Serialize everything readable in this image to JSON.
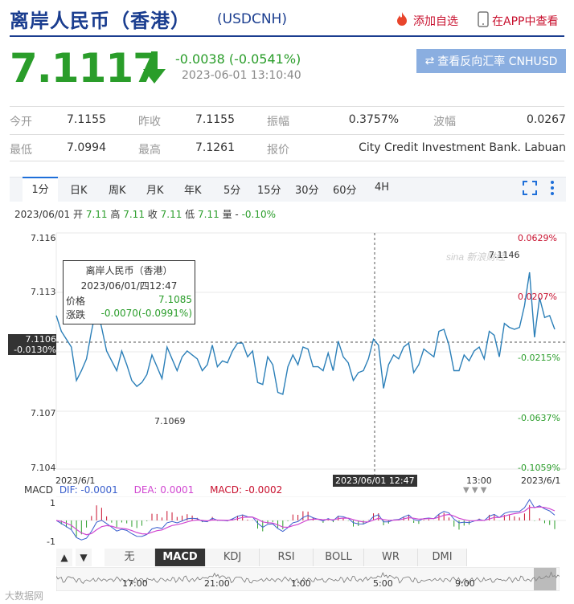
{
  "header": {
    "title": "离岸人民币（香港）",
    "code": "(USDCNH)",
    "add_watch": "添加自选",
    "view_app": "在APP中查看"
  },
  "quote": {
    "price": "7.1117",
    "change": "-0.0038 (-0.0541%)",
    "timestamp": "2023-06-01 13:10:40",
    "reverse_button": "查看反向汇率 CNHUSD",
    "fields": {
      "open_label": "今开",
      "open": "7.1155",
      "prev_label": "昨收",
      "prev": "7.1155",
      "amp_label": "振幅",
      "amp": "0.3757%",
      "wave_label": "波幅",
      "wave": "0.0267",
      "low_label": "最低",
      "low": "7.0994",
      "high_label": "最高",
      "high": "7.1261",
      "quote_label": "报价",
      "quoter": "City Credit Investment Bank. Labuan"
    }
  },
  "tabs": [
    "1分",
    "日K",
    "周K",
    "月K",
    "年K",
    "5分",
    "15分",
    "30分",
    "60分",
    "4H"
  ],
  "info_line": {
    "date": "2023/06/01",
    "open_label": "开",
    "open": "7.11",
    "high_label": "高",
    "high": "7.11",
    "close_label": "收",
    "close": "7.11",
    "low_label": "低",
    "low": "7.11",
    "vol_label": "量",
    "vol": "-",
    "change": "-0.10%"
  },
  "chart": {
    "y_labels": [
      "7.116",
      "7.113",
      "7.107",
      "7.104"
    ],
    "pct_labels": [
      "0.0629%",
      "0.0207%",
      "-0.0215%",
      "-0.0637%",
      "-0.1059%"
    ],
    "crosshair_price": "7.1106",
    "crosshair_pct": "-0.0130%",
    "max_label": "7.1146",
    "min_label": "7.1069",
    "x_start": "2023/6/1",
    "x_mid": "13:00",
    "x_end": "2023/6/1",
    "cursor_time": "2023/06/01 12:47",
    "watermark": "sina 新浪财经",
    "tooltip": {
      "title": "离岸人民币（香港）",
      "datetime": "2023/06/01/四12:47",
      "price_label": "价格",
      "price": "7.1085",
      "change_label": "涨跌",
      "change": "-0.0070(-0.0991%)"
    }
  },
  "chart_data": {
    "type": "line",
    "title": "",
    "ylim": [
      7.104,
      7.116
    ],
    "series": [
      {
        "name": "USDCNH",
        "values": [
          7.1118,
          7.111,
          7.1106,
          7.1102,
          7.1085,
          7.109,
          7.1096,
          7.111,
          7.1122,
          7.1112,
          7.11,
          7.1095,
          7.109,
          7.11,
          7.1093,
          7.1085,
          7.1082,
          7.1084,
          7.1088,
          7.1098,
          7.1092,
          7.1086,
          7.1102,
          7.1096,
          7.109,
          7.1097,
          7.11,
          7.1098,
          7.1096,
          7.109,
          7.1093,
          7.1103,
          7.1092,
          7.1095,
          7.1094,
          7.11,
          7.1104,
          7.1104,
          7.1097,
          7.11,
          7.1084,
          7.1083,
          7.1097,
          7.1093,
          7.1079,
          7.1078,
          7.1092,
          7.1098,
          7.1093,
          7.1102,
          7.1101,
          7.1092,
          7.1092,
          7.109,
          7.1099,
          7.109,
          7.1105,
          7.1097,
          7.1094,
          7.1085,
          7.1089,
          7.109,
          7.1096,
          7.1106,
          7.1103,
          7.1081,
          7.1093,
          7.1098,
          7.1096,
          7.1102,
          7.1104,
          7.1089,
          7.1093,
          7.1101,
          7.1099,
          7.1097,
          7.111,
          7.1111,
          7.1103,
          7.109,
          7.109,
          7.1098,
          7.1095,
          7.11,
          7.1102,
          7.1096,
          7.111,
          7.1108,
          7.1097,
          7.1114,
          7.1112,
          7.1111,
          7.1112,
          7.1123,
          7.114,
          7.1107,
          7.1127,
          7.1117,
          7.1118,
          7.1111
        ]
      }
    ]
  },
  "macd": {
    "label": "MACD",
    "dif_label": "DIF: -0.0001",
    "dea_label": "DEA: 0.0001",
    "macd_label": "MACD: -0.0002",
    "y_top": "1",
    "y_bottom": "-1"
  },
  "indicator_tabs": [
    "无",
    "MACD",
    "KDJ",
    "RSI",
    "BOLL",
    "WR",
    "DMI"
  ],
  "nav_bar": {
    "times": [
      "17:00",
      "21:00",
      "1:00",
      "5:00",
      "9:00"
    ]
  },
  "footer_watermark": "大数据网"
}
